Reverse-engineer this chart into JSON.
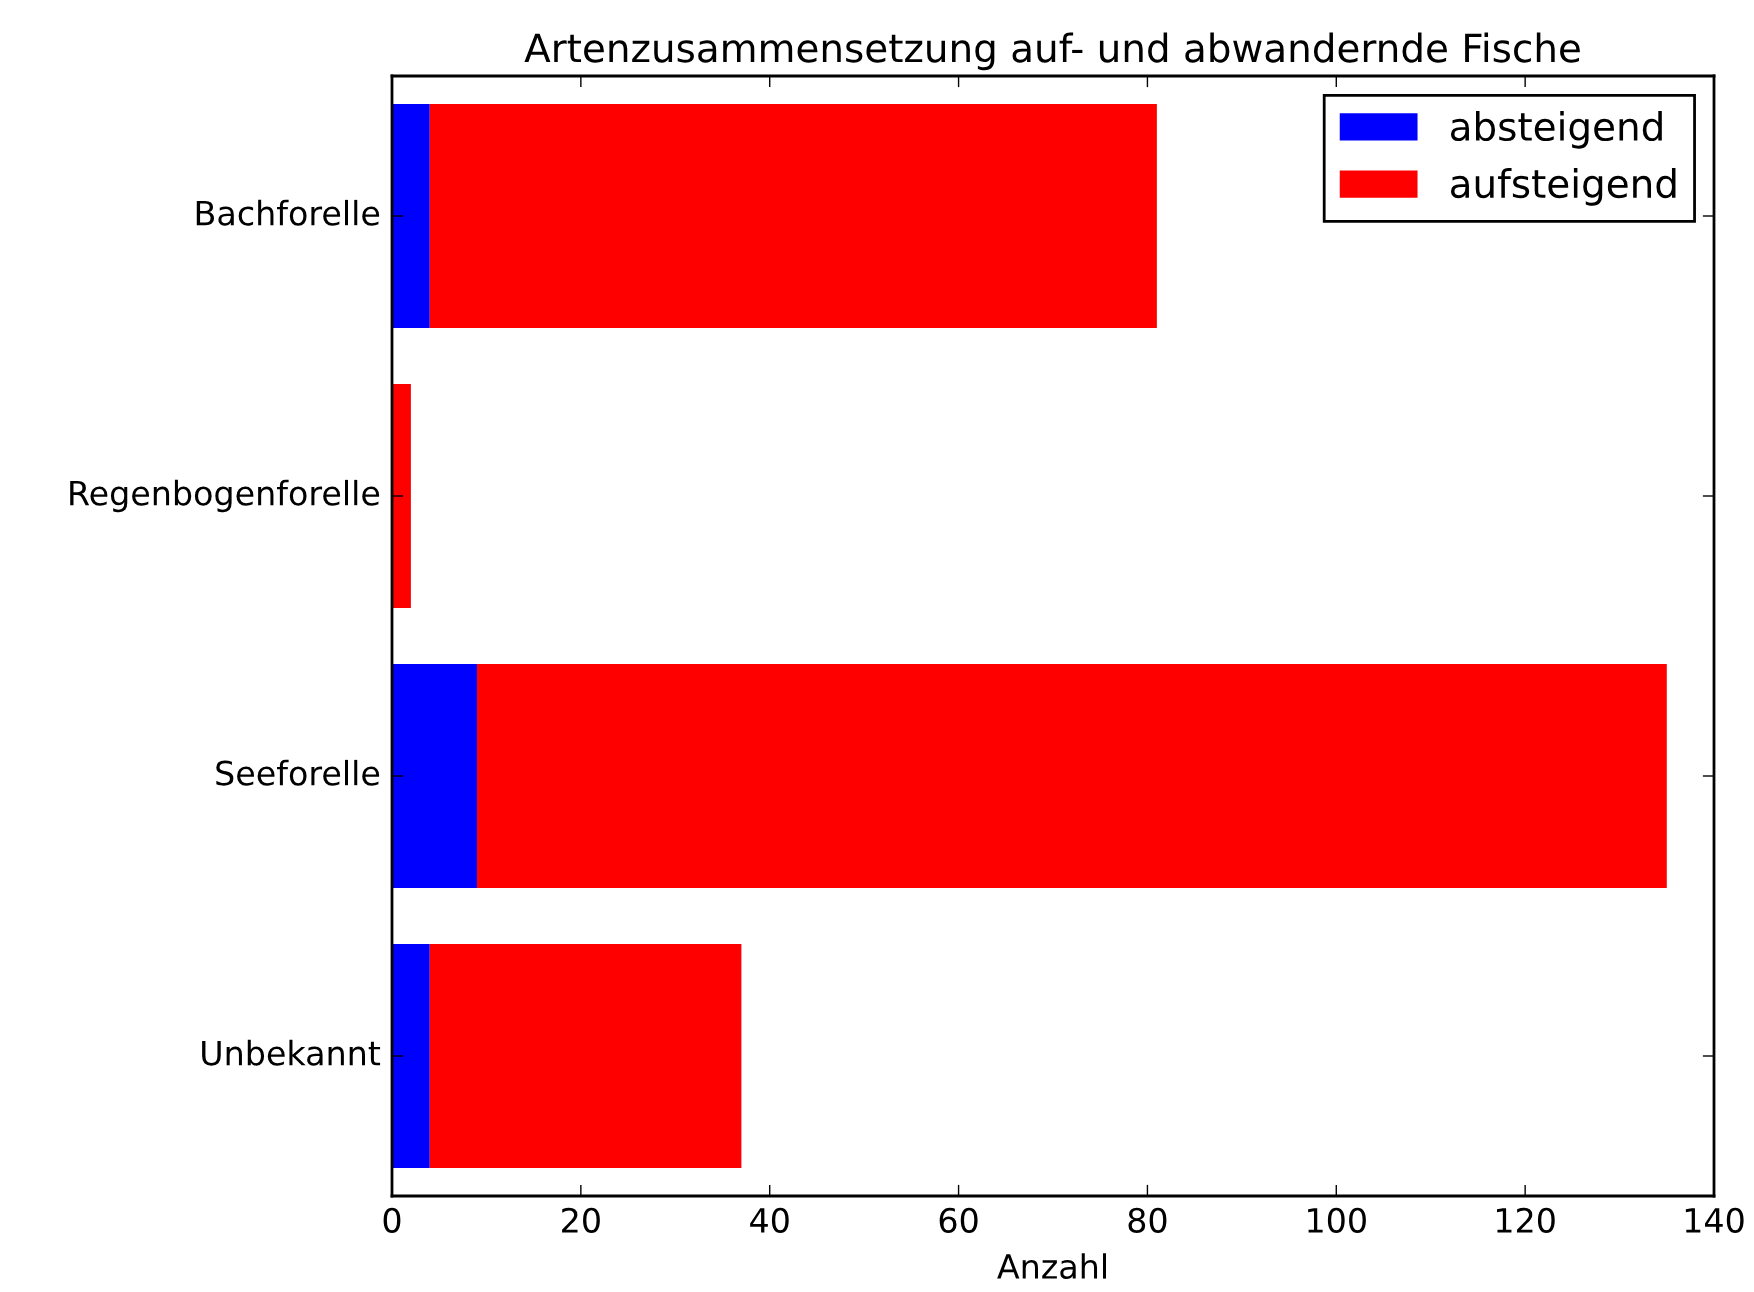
{
  "chart_data": {
    "type": "bar",
    "orientation": "horizontal",
    "stacked": true,
    "title": "Artenzusammensetzung auf- und abwandernde Fische",
    "xlabel": "Anzahl",
    "categories": [
      "Bachforelle",
      "Regenbogenforelle",
      "Seeforelle",
      "Unbekannt"
    ],
    "series": [
      {
        "name": "absteigend",
        "color": "#0000ff",
        "values": [
          4,
          0,
          9,
          4
        ]
      },
      {
        "name": "aufsteigend",
        "color": "#ff0000",
        "values": [
          77,
          2,
          126,
          33
        ]
      }
    ],
    "xlim": [
      0,
      140
    ],
    "xticks": [
      0,
      20,
      40,
      60,
      80,
      100,
      120,
      140
    ],
    "grid": false,
    "legend": "top right"
  }
}
